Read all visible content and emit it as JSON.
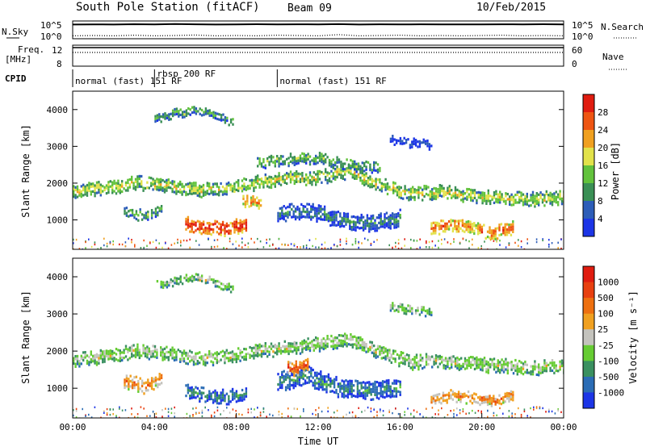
{
  "header": {
    "title": "South Pole Station (fitACF)",
    "beam": "Beam 09",
    "date": "10/Feb/2015"
  },
  "chart_data": [
    {
      "type": "line",
      "panel": "noise",
      "left_label": "N.Sky",
      "right_label": "N.Search",
      "ylim": [
        1,
        100000
      ],
      "log_scale": true,
      "left_ticks": [
        "10^5",
        "10^0"
      ],
      "right_ticks": [
        "10^5",
        "10^0"
      ],
      "series": [
        {
          "line": "solid",
          "values": [
            40000,
            45000,
            38000,
            50000,
            42000,
            60000,
            48000,
            39000,
            44000,
            52000,
            41000,
            47000,
            43000,
            55000,
            40000,
            46000,
            42000,
            49000,
            41000,
            45000,
            43000,
            47000,
            44000,
            50000,
            42000
          ]
        },
        {
          "line": "dotted",
          "values": [
            3,
            4,
            3,
            5,
            3,
            4,
            6,
            3,
            4,
            3,
            5,
            4,
            3,
            8,
            3,
            4,
            5,
            3,
            4,
            3,
            4,
            5,
            3,
            4,
            3
          ]
        }
      ],
      "x": [
        0,
        1,
        2,
        3,
        4,
        5,
        6,
        7,
        8,
        9,
        10,
        11,
        12,
        13,
        14,
        15,
        16,
        17,
        18,
        19,
        20,
        21,
        22,
        23,
        24
      ]
    },
    {
      "type": "line",
      "panel": "frequency",
      "left_label_line1": "Freq.",
      "left_label_line2": "[MHz]",
      "right_label": "Nave",
      "left_ticks": [
        "12",
        "8"
      ],
      "right_ticks": [
        "60",
        "0"
      ],
      "ylim": [
        8,
        12
      ],
      "series": [
        {
          "line": "solid",
          "values": [
            12,
            12,
            12,
            12,
            12,
            12,
            12,
            12,
            12,
            12,
            12,
            12,
            12,
            12,
            12,
            12,
            12,
            12,
            12,
            12,
            12,
            12,
            12,
            12,
            12
          ]
        },
        {
          "line": "dotted",
          "values": [
            40,
            40,
            40,
            40,
            40,
            40,
            40,
            40,
            40,
            40,
            40,
            40,
            40,
            40,
            40,
            40,
            40,
            40,
            40,
            40,
            40,
            40,
            40,
            40,
            40
          ]
        }
      ],
      "x": [
        0,
        1,
        2,
        3,
        4,
        5,
        6,
        7,
        8,
        9,
        10,
        11,
        12,
        13,
        14,
        15,
        16,
        17,
        18,
        19,
        20,
        21,
        22,
        23,
        24
      ]
    },
    {
      "type": "table",
      "panel": "cpid",
      "label": "CPID",
      "segments": [
        {
          "start": 0,
          "end": 4,
          "text": "normal (fast) 151 RF"
        },
        {
          "start": 4,
          "end": 10,
          "text": "rbsp 200 RF"
        },
        {
          "start": 10,
          "end": 24,
          "text": "normal (fast) 151 RF"
        }
      ]
    },
    {
      "type": "heatmap",
      "panel": "power",
      "ylabel": "Slant Range [km]",
      "xlim": [
        0,
        24
      ],
      "ylim": [
        200,
        4500
      ],
      "yticks": [
        1000,
        2000,
        3000,
        4000
      ],
      "colorbar_label": "Power [dB]",
      "colorbar_ticks": [
        "28",
        "24",
        "20",
        "16",
        "12",
        "8",
        "4"
      ],
      "colors": [
        "#1c35e6",
        "#2d5db8",
        "#3a8f55",
        "#62c23c",
        "#e2e24a",
        "#f0a020",
        "#ee5512",
        "#e01c10"
      ],
      "bands": [
        {
          "x": [
            0.0,
            1.5,
            3.0,
            4.5,
            6.0,
            7.5,
            9.0,
            10.5,
            12.0,
            13.5,
            15.0,
            16.5,
            18.0,
            19.5,
            21.0,
            22.5,
            24.0
          ],
          "center": [
            1800,
            1900,
            2050,
            2000,
            1850,
            1900,
            2050,
            2150,
            2200,
            2350,
            2000,
            1750,
            1800,
            1700,
            1650,
            1600,
            1650
          ],
          "width": 300,
          "level": 4
        },
        {
          "x": [
            4.0,
            5.0,
            6.0,
            7.0,
            7.8
          ],
          "center": [
            3800,
            3950,
            4000,
            3900,
            3700
          ],
          "width": 180,
          "level": 3
        },
        {
          "x": [
            9.0,
            10.5,
            12.0,
            13.5,
            15.0
          ],
          "center": [
            2600,
            2700,
            2750,
            2550,
            2450
          ],
          "width": 280,
          "level": 3
        },
        {
          "x": [
            5.5,
            6.5,
            7.5,
            8.5
          ],
          "center": [
            950,
            850,
            800,
            950
          ],
          "width": 320,
          "level": 7
        },
        {
          "x": [
            8.3,
            9.2
          ],
          "center": [
            1550,
            1500
          ],
          "width": 220,
          "level": 6
        },
        {
          "x": [
            17.5,
            18.5,
            19.5,
            20.5,
            21.5
          ],
          "center": [
            750,
            900,
            800,
            700,
            850
          ],
          "width": 300,
          "level": 6
        },
        {
          "x": [
            2.5,
            3.5,
            4.3
          ],
          "center": [
            1250,
            1150,
            1350
          ],
          "width": 240,
          "level": 3
        },
        {
          "x": [
            10.0,
            11.5,
            13.0,
            14.5,
            16.0
          ],
          "center": [
            1200,
            1300,
            1050,
            950,
            1100
          ],
          "width": 380,
          "level": 2
        },
        {
          "x": [
            15.5,
            16.5,
            17.5
          ],
          "center": [
            3250,
            3150,
            3100
          ],
          "width": 200,
          "level": 1
        }
      ]
    },
    {
      "type": "heatmap",
      "panel": "velocity",
      "ylabel": "Slant Range [km]",
      "xlabel": "Time UT",
      "xticks": [
        "00:00",
        "04:00",
        "08:00",
        "12:00",
        "16:00",
        "20:00",
        "00:00"
      ],
      "xlim": [
        0,
        24
      ],
      "ylim": [
        200,
        4500
      ],
      "yticks": [
        1000,
        2000,
        3000,
        4000
      ],
      "colorbar_label": "Velocity [m s⁻¹]",
      "colorbar_ticks": [
        "1000",
        "500",
        "100",
        "25",
        "-25",
        "-100",
        "-500",
        "-1000"
      ],
      "colors": [
        "#1c35e6",
        "#2b6cb5",
        "#3a9060",
        "#66cc33",
        "#c4c3bd",
        "#f0a020",
        "#ee7010",
        "#e84010",
        "#e01c10"
      ],
      "bands": [
        {
          "x": [
            0.0,
            1.5,
            3.0,
            4.5,
            6.0,
            7.5,
            9.0,
            10.5,
            12.0,
            13.5,
            15.0,
            16.5,
            18.0,
            19.5,
            21.0,
            22.5,
            24.0
          ],
          "center": [
            1800,
            1900,
            2050,
            2000,
            1850,
            1900,
            2050,
            2150,
            2250,
            2350,
            2000,
            1750,
            1800,
            1700,
            1650,
            1600,
            1650
          ],
          "width": 330,
          "level": 4
        },
        {
          "x": [
            4.0,
            5.0,
            6.0,
            7.0,
            7.8
          ],
          "center": [
            3800,
            3950,
            4000,
            3900,
            3700
          ],
          "width": 180,
          "level": 4
        },
        {
          "x": [
            2.5,
            3.5,
            4.3
          ],
          "center": [
            1250,
            1100,
            1300
          ],
          "width": 320,
          "level": 6
        },
        {
          "x": [
            5.5,
            6.5,
            7.5,
            8.5
          ],
          "center": [
            950,
            850,
            800,
            950
          ],
          "width": 300,
          "level": 2
        },
        {
          "x": [
            10.0,
            11.5,
            13.0,
            14.5,
            16.0
          ],
          "center": [
            1200,
            1350,
            1050,
            950,
            1100
          ],
          "width": 420,
          "level": 2
        },
        {
          "x": [
            17.5,
            18.5,
            19.5,
            20.5,
            21.5
          ],
          "center": [
            750,
            850,
            800,
            700,
            850
          ],
          "width": 260,
          "level": 6
        },
        {
          "x": [
            10.5,
            11.0,
            11.5
          ],
          "center": [
            1600,
            1550,
            1650
          ],
          "width": 300,
          "level": 7
        },
        {
          "x": [
            15.5,
            16.5,
            17.5
          ],
          "center": [
            3250,
            3150,
            3100
          ],
          "width": 200,
          "level": 4
        }
      ]
    }
  ]
}
